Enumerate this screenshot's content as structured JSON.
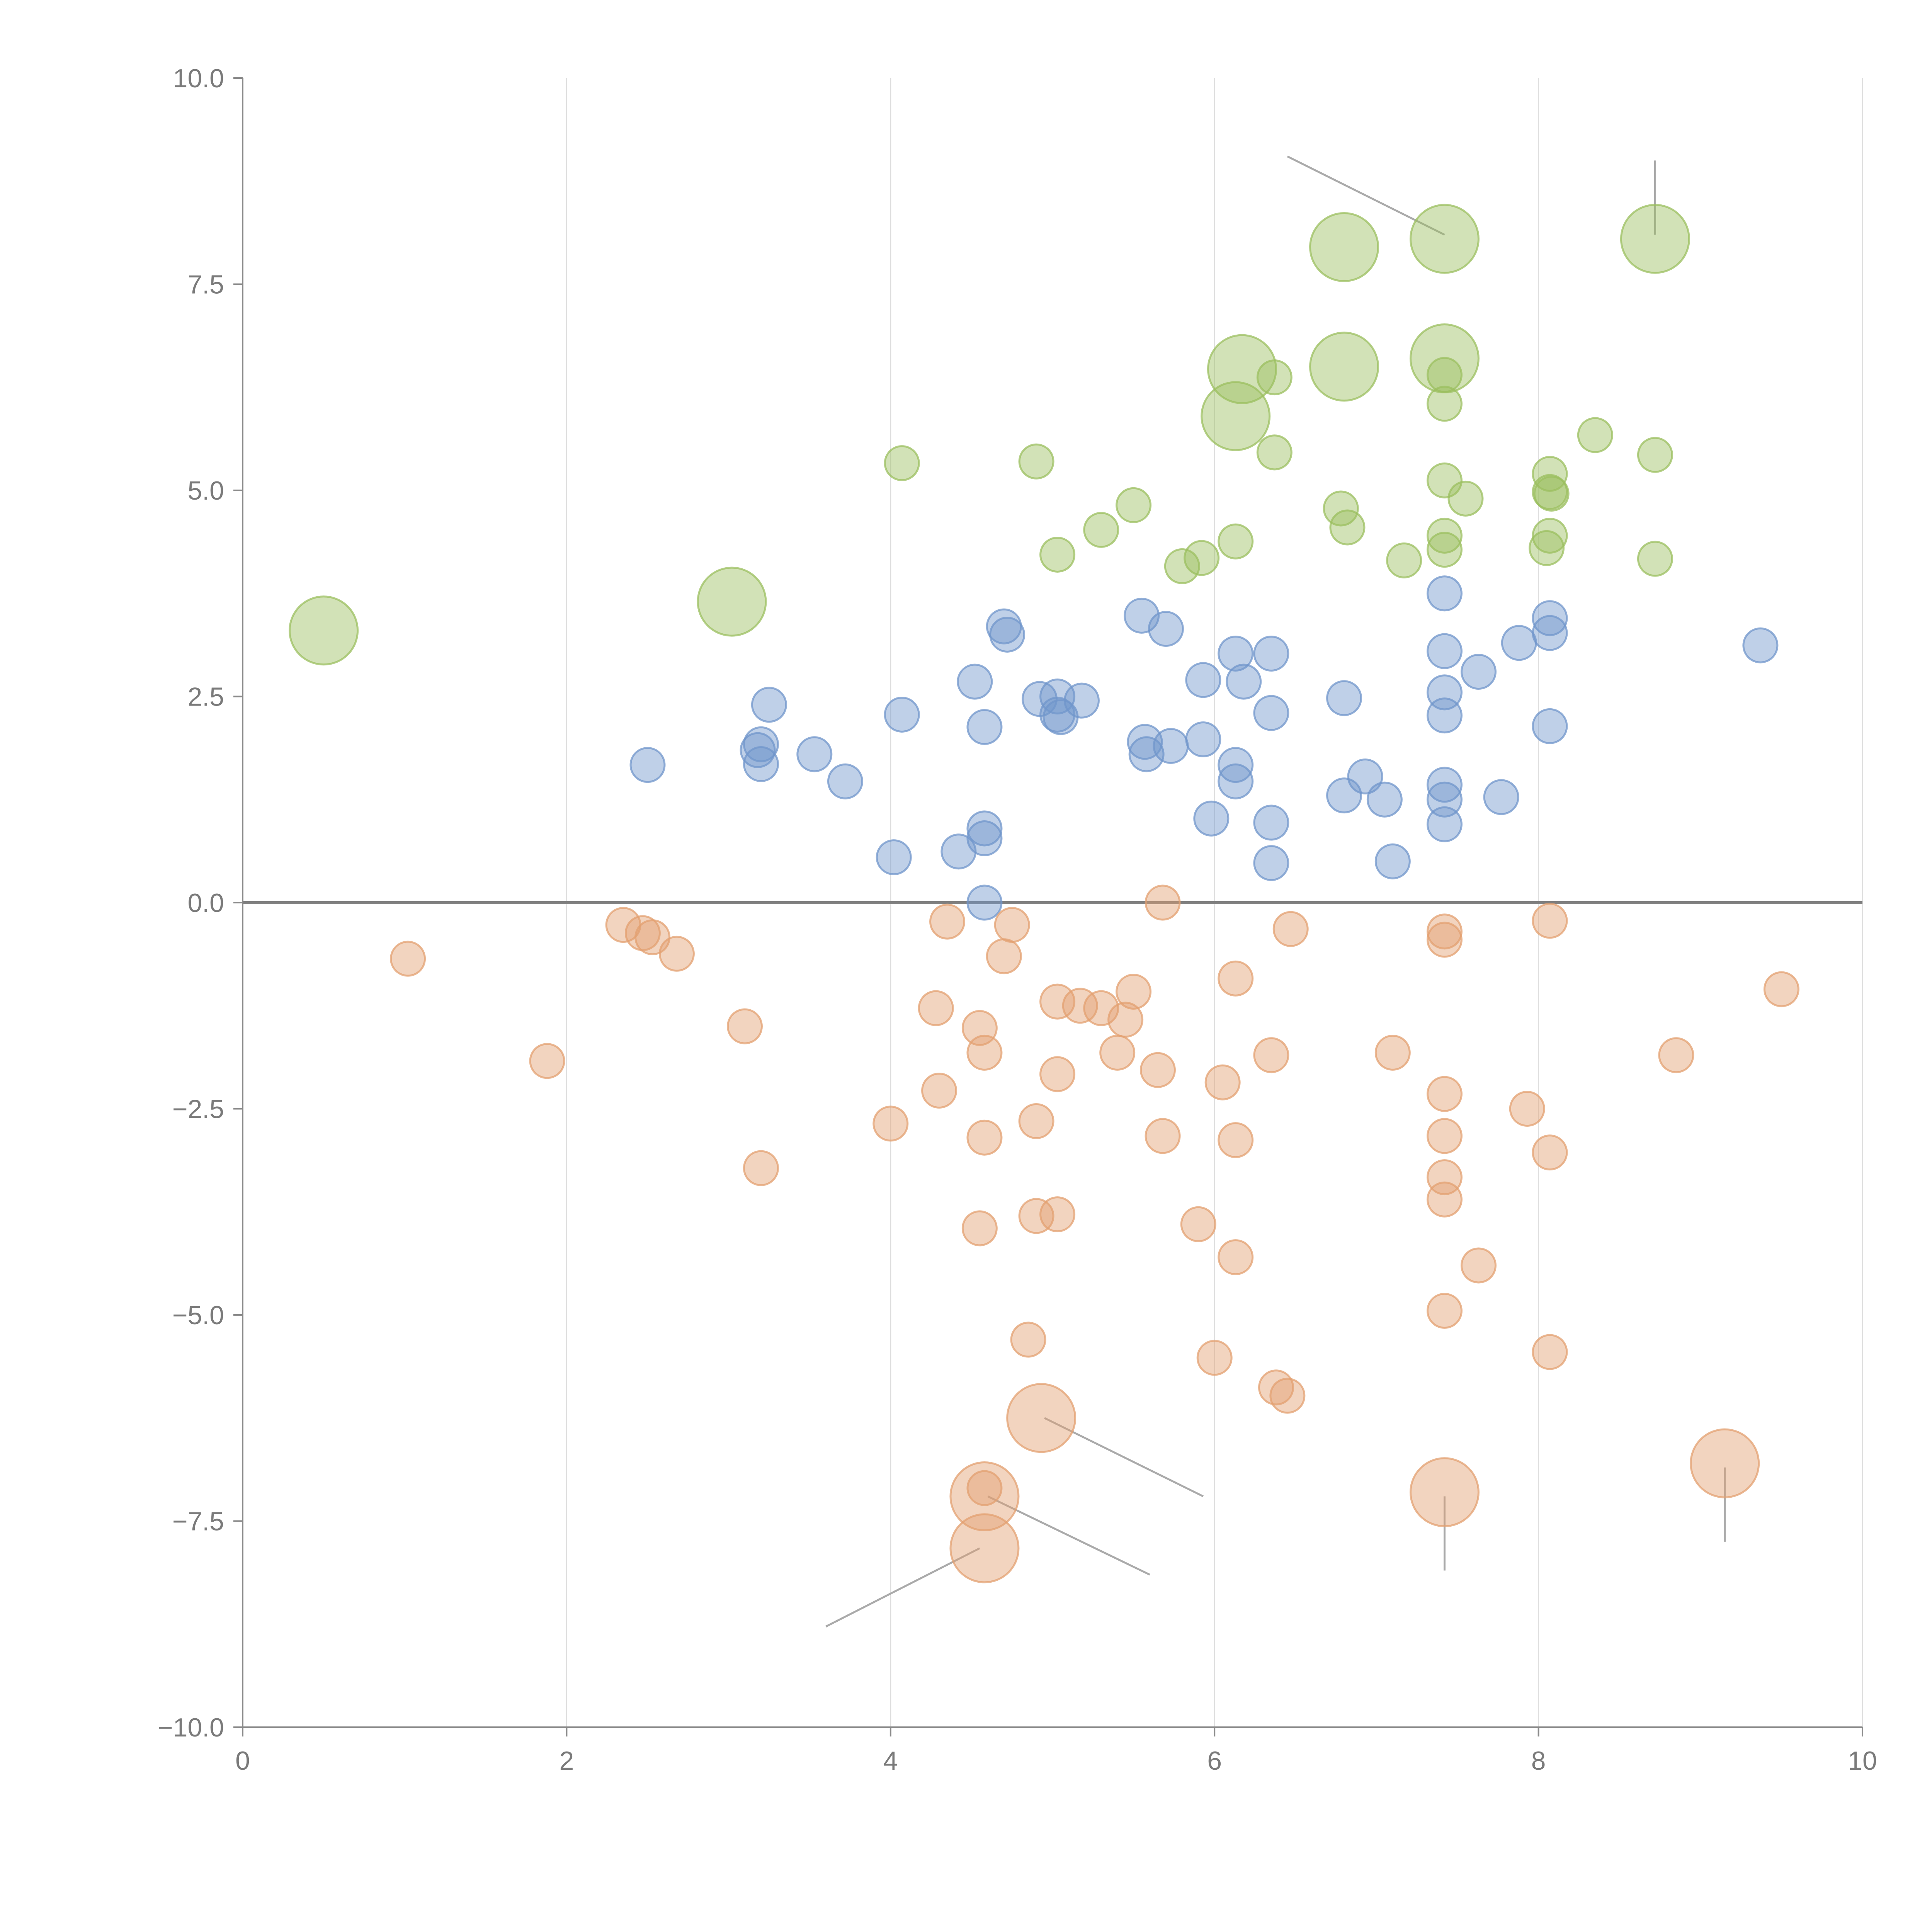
{
  "chart_data": {
    "type": "scatter",
    "title": "",
    "xlabel": "",
    "ylabel": "",
    "xlim": [
      0,
      10
    ],
    "ylim": [
      -10,
      10
    ],
    "x_ticks": [
      0,
      2,
      4,
      6,
      8,
      10
    ],
    "y_ticks": [
      -10,
      -7.5,
      -5,
      -2.5,
      0,
      2.5,
      5,
      7.5,
      10
    ],
    "x_tick_labels": [
      "0",
      "2",
      "4",
      "6",
      "8",
      "10"
    ],
    "y_tick_labels": [
      "−10.0",
      "−7.5",
      "−5.0",
      "−2.5",
      "0.0",
      "2.5",
      "5.0",
      "7.5",
      "10.0"
    ],
    "vertical_grid": true,
    "zero_line": true,
    "series": [
      {
        "name": "green",
        "color": "#9bbf5f",
        "points": [
          [
            0.5,
            3.3,
            2
          ],
          [
            3.02,
            3.65,
            2
          ],
          [
            4.07,
            5.33,
            1
          ],
          [
            4.9,
            5.35,
            1
          ],
          [
            5.5,
            4.82,
            1
          ],
          [
            5.3,
            4.52,
            1
          ],
          [
            5.03,
            4.22,
            1
          ],
          [
            5.8,
            4.08,
            1
          ],
          [
            5.92,
            4.18,
            1
          ],
          [
            6.13,
            4.38,
            1
          ],
          [
            6.37,
            5.46,
            1
          ],
          [
            6.37,
            6.37,
            1
          ],
          [
            6.13,
            5.9,
            2
          ],
          [
            6.17,
            6.47,
            2
          ],
          [
            6.8,
            6.5,
            2
          ],
          [
            6.8,
            7.95,
            2
          ],
          [
            7.42,
            8.05,
            2
          ],
          [
            7.42,
            6.6,
            2
          ],
          [
            7.42,
            6.4,
            1
          ],
          [
            7.42,
            6.05,
            1
          ],
          [
            7.42,
            5.12,
            1
          ],
          [
            7.42,
            4.45,
            1
          ],
          [
            7.42,
            4.28,
            1
          ],
          [
            7.55,
            4.9,
            1
          ],
          [
            6.78,
            4.78,
            1
          ],
          [
            6.82,
            4.55,
            1
          ],
          [
            7.17,
            4.15,
            1
          ],
          [
            8.07,
            5.2,
            1
          ],
          [
            8.07,
            4.98,
            1
          ],
          [
            8.08,
            4.96,
            1
          ],
          [
            8.07,
            4.45,
            1
          ],
          [
            8.05,
            4.3,
            1
          ],
          [
            8.35,
            5.67,
            1
          ],
          [
            8.72,
            5.43,
            1
          ],
          [
            8.72,
            4.17,
            1
          ],
          [
            8.72,
            8.05,
            2
          ]
        ]
      },
      {
        "name": "blue",
        "color": "#7096cb",
        "points": [
          [
            2.5,
            1.67,
            1
          ],
          [
            3.18,
            1.85,
            1
          ],
          [
            3.2,
            1.92,
            1
          ],
          [
            3.2,
            1.68,
            1
          ],
          [
            3.25,
            2.4,
            1
          ],
          [
            3.53,
            1.8,
            1
          ],
          [
            3.72,
            1.47,
            1
          ],
          [
            4.02,
            0.55,
            1
          ],
          [
            4.07,
            2.28,
            1
          ],
          [
            4.42,
            0.62,
            1
          ],
          [
            4.52,
            2.68,
            1
          ],
          [
            4.58,
            2.13,
            1
          ],
          [
            4.58,
            0.9,
            1
          ],
          [
            4.58,
            0.78,
            1
          ],
          [
            4.58,
            0.0,
            1
          ],
          [
            4.7,
            3.35,
            1
          ],
          [
            4.72,
            3.25,
            1
          ],
          [
            4.92,
            2.47,
            1
          ],
          [
            5.03,
            2.5,
            1
          ],
          [
            5.03,
            2.28,
            1
          ],
          [
            5.05,
            2.25,
            1
          ],
          [
            5.18,
            2.45,
            1
          ],
          [
            5.55,
            3.48,
            1
          ],
          [
            5.57,
            1.95,
            1
          ],
          [
            5.58,
            1.8,
            1
          ],
          [
            5.7,
            3.32,
            1
          ],
          [
            5.73,
            1.9,
            1
          ],
          [
            5.93,
            2.7,
            1
          ],
          [
            5.93,
            1.98,
            1
          ],
          [
            5.98,
            1.02,
            1
          ],
          [
            6.13,
            3.02,
            1
          ],
          [
            6.13,
            1.67,
            1
          ],
          [
            6.13,
            1.47,
            1
          ],
          [
            6.18,
            2.68,
            1
          ],
          [
            6.35,
            3.02,
            1
          ],
          [
            6.35,
            2.3,
            1
          ],
          [
            6.35,
            0.97,
            1
          ],
          [
            6.35,
            0.48,
            1
          ],
          [
            6.8,
            2.48,
            1
          ],
          [
            6.8,
            1.3,
            1
          ],
          [
            6.93,
            1.53,
            1
          ],
          [
            7.05,
            1.25,
            1
          ],
          [
            7.1,
            0.5,
            1
          ],
          [
            7.42,
            3.75,
            1
          ],
          [
            7.42,
            3.05,
            1
          ],
          [
            7.42,
            2.55,
            1
          ],
          [
            7.42,
            2.27,
            1
          ],
          [
            7.42,
            1.43,
            1
          ],
          [
            7.42,
            1.25,
            1
          ],
          [
            7.42,
            0.95,
            1
          ],
          [
            7.63,
            2.8,
            1
          ],
          [
            7.77,
            1.28,
            1
          ],
          [
            7.88,
            3.15,
            1
          ],
          [
            8.07,
            3.45,
            1
          ],
          [
            8.07,
            3.27,
            1
          ],
          [
            8.07,
            2.14,
            1
          ],
          [
            9.37,
            3.12,
            1
          ]
        ]
      },
      {
        "name": "orange",
        "color": "#e3a070",
        "points": [
          [
            1.02,
            -0.68,
            1
          ],
          [
            1.88,
            -1.92,
            1
          ],
          [
            2.35,
            -0.27,
            1
          ],
          [
            2.47,
            -0.37,
            1
          ],
          [
            2.53,
            -0.42,
            1
          ],
          [
            2.68,
            -0.62,
            1
          ],
          [
            3.1,
            -1.5,
            1
          ],
          [
            3.2,
            -3.22,
            1
          ],
          [
            4.0,
            -2.68,
            1
          ],
          [
            4.28,
            -1.28,
            1
          ],
          [
            4.3,
            -2.28,
            1
          ],
          [
            4.35,
            -0.23,
            1
          ],
          [
            4.55,
            -1.52,
            1
          ],
          [
            4.55,
            -3.95,
            1
          ],
          [
            4.58,
            -1.82,
            1
          ],
          [
            4.58,
            -2.85,
            1
          ],
          [
            4.58,
            -7.1,
            1
          ],
          [
            4.58,
            -7.2,
            2
          ],
          [
            4.58,
            -7.83,
            2
          ],
          [
            4.7,
            -0.65,
            1
          ],
          [
            4.75,
            -0.27,
            1
          ],
          [
            4.85,
            -5.3,
            1
          ],
          [
            4.9,
            -2.65,
            1
          ],
          [
            4.9,
            -3.8,
            1
          ],
          [
            4.93,
            -6.25,
            2
          ],
          [
            5.03,
            -1.2,
            1
          ],
          [
            5.03,
            -2.08,
            1
          ],
          [
            5.03,
            -3.78,
            1
          ],
          [
            5.17,
            -1.25,
            1
          ],
          [
            5.3,
            -1.28,
            1
          ],
          [
            5.4,
            -1.82,
            1
          ],
          [
            5.45,
            -1.42,
            1
          ],
          [
            5.5,
            -1.08,
            1
          ],
          [
            5.65,
            -2.03,
            1
          ],
          [
            5.68,
            0.0,
            1
          ],
          [
            5.68,
            -2.83,
            1
          ],
          [
            5.9,
            -3.9,
            1
          ],
          [
            6.0,
            -5.52,
            1
          ],
          [
            6.05,
            -2.18,
            1
          ],
          [
            6.13,
            -0.92,
            1
          ],
          [
            6.13,
            -2.88,
            1
          ],
          [
            6.13,
            -4.3,
            1
          ],
          [
            6.35,
            -1.85,
            1
          ],
          [
            6.38,
            -5.88,
            1
          ],
          [
            6.45,
            -5.98,
            1
          ],
          [
            6.47,
            -0.32,
            1
          ],
          [
            7.1,
            -1.82,
            1
          ],
          [
            7.42,
            -0.35,
            1
          ],
          [
            7.42,
            -0.45,
            1
          ],
          [
            7.42,
            -2.32,
            1
          ],
          [
            7.42,
            -2.83,
            1
          ],
          [
            7.42,
            -3.33,
            1
          ],
          [
            7.42,
            -3.6,
            1
          ],
          [
            7.42,
            -4.95,
            1
          ],
          [
            7.42,
            -7.15,
            2
          ],
          [
            7.63,
            -4.4,
            1
          ],
          [
            7.93,
            -2.5,
            1
          ],
          [
            8.07,
            -0.22,
            1
          ],
          [
            8.07,
            -3.03,
            1
          ],
          [
            8.07,
            -5.45,
            1
          ],
          [
            8.85,
            -1.85,
            1
          ],
          [
            9.15,
            -6.8,
            2
          ],
          [
            9.5,
            -1.05,
            1
          ]
        ]
      }
    ],
    "leader_lines": [
      [
        [
          6.45,
          9.05
        ],
        [
          7.42,
          8.1
        ]
      ],
      [
        [
          8.72,
          9.0
        ],
        [
          8.72,
          8.1
        ]
      ],
      [
        [
          4.95,
          -6.25
        ],
        [
          5.93,
          -7.2
        ]
      ],
      [
        [
          4.6,
          -7.2
        ],
        [
          5.6,
          -8.15
        ]
      ],
      [
        [
          4.55,
          -7.83
        ],
        [
          3.6,
          -8.78
        ]
      ],
      [
        [
          7.42,
          -7.2
        ],
        [
          7.42,
          -8.1
        ]
      ],
      [
        [
          9.15,
          -6.85
        ],
        [
          9.15,
          -7.75
        ]
      ]
    ]
  }
}
